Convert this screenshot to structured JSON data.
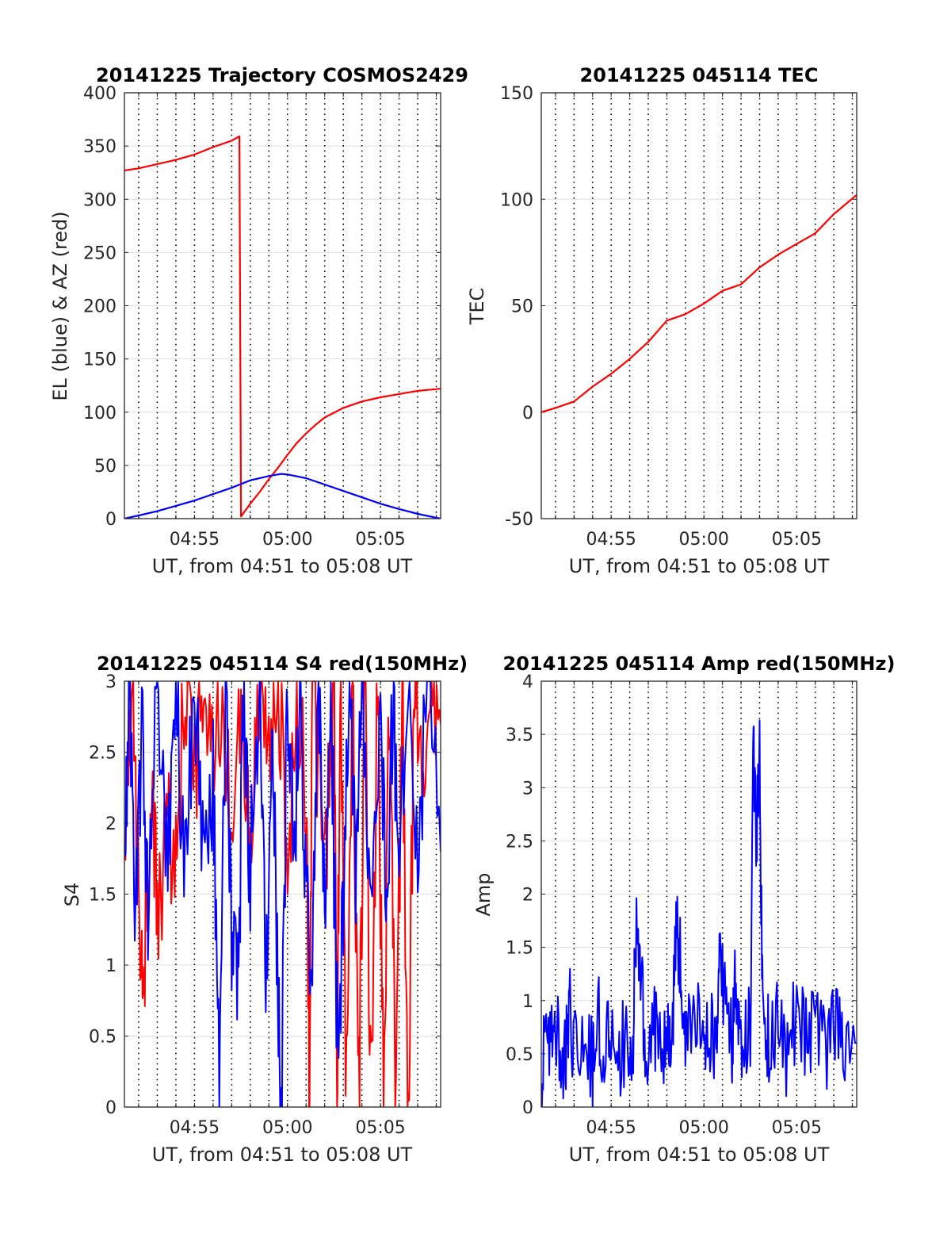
{
  "chart_data": [
    {
      "type": "line",
      "title": "20141225 Trajectory COSMOS2429",
      "xlabel": "UT, from 04:51 to 05:08 UT",
      "ylabel": "EL (blue) & AZ (red)",
      "x_range": [
        "04:51:14",
        "05:08:14"
      ],
      "ylim": [
        0,
        400
      ],
      "yticks": [
        0,
        50,
        100,
        150,
        200,
        250,
        300,
        350,
        400
      ],
      "xticks": [
        "04:55",
        "05:00",
        "05:05"
      ],
      "grid": "dotted vertical every minute, solid horizontal",
      "series": [
        {
          "color": "#ff0000",
          "kind": "azimuth",
          "points": [
            [
              "04:51:14",
              327
            ],
            [
              "04:52:00",
              329
            ],
            [
              "04:53:00",
              333
            ],
            [
              "04:54:00",
              337
            ],
            [
              "04:55:00",
              342
            ],
            [
              "04:56:00",
              349
            ],
            [
              "04:57:00",
              355
            ],
            [
              "04:57:25",
              359
            ],
            [
              "04:57:30",
              2
            ],
            [
              "04:58:00",
              14
            ],
            [
              "04:58:30",
              25
            ],
            [
              "04:59:00",
              37
            ],
            [
              "04:59:30",
              48
            ],
            [
              "05:00:00",
              60
            ],
            [
              "05:00:30",
              71
            ],
            [
              "05:01:00",
              80
            ],
            [
              "05:01:30",
              88
            ],
            [
              "05:02:00",
              95
            ],
            [
              "05:03:00",
              104
            ],
            [
              "05:04:00",
              110
            ],
            [
              "05:05:00",
              114
            ],
            [
              "05:06:00",
              117
            ],
            [
              "05:07:00",
              120
            ],
            [
              "05:08:14",
              122
            ]
          ]
        },
        {
          "color": "#0000ff",
          "kind": "elevation",
          "points": [
            [
              "04:51:14",
              0
            ],
            [
              "04:52:00",
              3
            ],
            [
              "04:53:00",
              7
            ],
            [
              "04:54:00",
              12
            ],
            [
              "04:55:00",
              17
            ],
            [
              "04:56:00",
              23
            ],
            [
              "04:57:00",
              29
            ],
            [
              "04:58:00",
              36
            ],
            [
              "04:59:00",
              40
            ],
            [
              "04:59:40",
              42
            ],
            [
              "05:00:00",
              41.5
            ],
            [
              "05:01:00",
              38
            ],
            [
              "05:02:00",
              32
            ],
            [
              "05:03:00",
              26
            ],
            [
              "05:04:00",
              20
            ],
            [
              "05:05:00",
              14
            ],
            [
              "05:06:00",
              9
            ],
            [
              "05:07:00",
              4.5
            ],
            [
              "05:08:14",
              0
            ]
          ]
        }
      ]
    },
    {
      "type": "line",
      "title": "20141225 045114 TEC",
      "xlabel": "UT, from 04:51 to 05:08 UT",
      "ylabel": "TEC",
      "x_range": [
        "04:51:14",
        "05:08:14"
      ],
      "ylim": [
        -50,
        150
      ],
      "yticks": [
        -50,
        0,
        50,
        100,
        150
      ],
      "xticks": [
        "04:55",
        "05:00",
        "05:05"
      ],
      "series": [
        {
          "color": "#ff0000",
          "points": [
            [
              "04:51:14",
              0
            ],
            [
              "04:52:00",
              2
            ],
            [
              "04:53:00",
              5
            ],
            [
              "04:54:00",
              12
            ],
            [
              "04:55:00",
              18
            ],
            [
              "04:56:00",
              25
            ],
            [
              "04:57:00",
              33
            ],
            [
              "04:58:00",
              43
            ],
            [
              "04:59:00",
              46
            ],
            [
              "05:00:00",
              51
            ],
            [
              "05:01:00",
              57
            ],
            [
              "05:02:00",
              60
            ],
            [
              "05:03:00",
              68
            ],
            [
              "05:04:00",
              74
            ],
            [
              "05:05:00",
              79
            ],
            [
              "05:06:00",
              84
            ],
            [
              "05:07:00",
              93
            ],
            [
              "05:08:14",
              102
            ]
          ]
        }
      ]
    },
    {
      "type": "line",
      "title": "20141225 045114 S4 red(150MHz)",
      "xlabel": "UT, from 04:51 to 05:08 UT",
      "ylabel": "S4",
      "x_range": [
        "04:51:14",
        "05:08:14"
      ],
      "ylim": [
        0,
        3
      ],
      "yticks": [
        0,
        0.5,
        1,
        1.5,
        2,
        2.5,
        3
      ],
      "xticks": [
        "04:55",
        "05:00",
        "05:05"
      ],
      "series": [
        {
          "color": "#ff0000",
          "points": [
            [
              "04:51:14",
              1.9
            ],
            [
              "04:51:40",
              3
            ],
            [
              "04:52:00",
              1.5
            ],
            [
              "04:52:20",
              1.1
            ],
            [
              "04:52:40",
              2.5
            ],
            [
              "04:53:00",
              1.4
            ],
            [
              "04:53:30",
              1.9
            ],
            [
              "04:54:00",
              1.7
            ],
            [
              "04:54:30",
              3
            ],
            [
              "04:55:00",
              2.2
            ],
            [
              "04:55:30",
              3
            ],
            [
              "04:56:00",
              2.5
            ],
            [
              "04:56:30",
              3
            ],
            [
              "04:57:00",
              1.8
            ],
            [
              "04:57:30",
              2.8
            ],
            [
              "04:58:00",
              1.7
            ],
            [
              "04:58:30",
              3
            ],
            [
              "04:59:00",
              2.3
            ],
            [
              "04:59:30",
              3
            ],
            [
              "05:00:00",
              1.8
            ],
            [
              "05:00:30",
              3
            ],
            [
              "05:01:00",
              2.2
            ],
            [
              "05:01:10",
              0
            ],
            [
              "05:01:20",
              3
            ],
            [
              "05:02:00",
              1.6
            ],
            [
              "05:02:30",
              3
            ],
            [
              "05:02:40",
              0
            ],
            [
              "05:02:50",
              3
            ],
            [
              "05:03:10",
              0
            ],
            [
              "05:03:30",
              3
            ],
            [
              "05:03:50",
              0
            ],
            [
              "05:04:10",
              3
            ],
            [
              "05:04:30",
              0
            ],
            [
              "05:04:50",
              3
            ],
            [
              "05:05:10",
              0
            ],
            [
              "05:05:30",
              3
            ],
            [
              "05:05:50",
              0
            ],
            [
              "05:06:10",
              3
            ],
            [
              "05:06:30",
              0
            ],
            [
              "05:06:50",
              3
            ],
            [
              "05:07:10",
              2.4
            ],
            [
              "05:07:40",
              3
            ],
            [
              "05:08:14",
              2.7
            ]
          ]
        },
        {
          "color": "#0000ff",
          "points": [
            [
              "04:51:14",
              1.5
            ],
            [
              "04:51:30",
              3
            ],
            [
              "04:51:50",
              1.4
            ],
            [
              "04:52:10",
              2.6
            ],
            [
              "04:52:30",
              1.5
            ],
            [
              "04:53:00",
              2.8
            ],
            [
              "04:53:30",
              1.6
            ],
            [
              "04:54:00",
              3
            ],
            [
              "04:54:30",
              1.5
            ],
            [
              "04:55:00",
              3
            ],
            [
              "04:55:30",
              1.6
            ],
            [
              "04:56:00",
              2.4
            ],
            [
              "04:56:20",
              0
            ],
            [
              "04:56:40",
              3
            ],
            [
              "04:57:00",
              1.2
            ],
            [
              "04:57:20",
              0.8
            ],
            [
              "04:57:40",
              3
            ],
            [
              "04:58:00",
              1.6
            ],
            [
              "04:58:30",
              3
            ],
            [
              "04:58:50",
              0.7
            ],
            [
              "04:59:10",
              3
            ],
            [
              "04:59:25",
              1.2
            ],
            [
              "04:59:40",
              0
            ],
            [
              "05:00:00",
              3
            ],
            [
              "05:00:20",
              1.7
            ],
            [
              "05:00:40",
              3
            ],
            [
              "05:01:00",
              1.5
            ],
            [
              "05:01:20",
              1.1
            ],
            [
              "05:01:40",
              3
            ],
            [
              "05:02:00",
              1.5
            ],
            [
              "05:02:20",
              3
            ],
            [
              "05:02:40",
              0.5
            ],
            [
              "05:03:00",
              1.3
            ],
            [
              "05:03:20",
              3
            ],
            [
              "05:03:40",
              1.5
            ],
            [
              "05:04:00",
              3
            ],
            [
              "05:04:30",
              1.5
            ],
            [
              "05:05:00",
              3
            ],
            [
              "05:05:20",
              1.2
            ],
            [
              "05:05:40",
              3
            ],
            [
              "05:06:00",
              1.5
            ],
            [
              "05:06:30",
              3
            ],
            [
              "05:07:00",
              1.6
            ],
            [
              "05:07:30",
              3
            ],
            [
              "05:08:14",
              1.8
            ]
          ]
        }
      ]
    },
    {
      "type": "line",
      "title": "20141225 045114 Amp red(150MHz)",
      "xlabel": "UT, from 04:51 to 05:08 UT",
      "ylabel": "Amp",
      "x_range": [
        "04:51:14",
        "05:08:14"
      ],
      "ylim": [
        0,
        4
      ],
      "yticks": [
        0,
        0.5,
        1,
        1.5,
        2,
        2.5,
        3,
        3.5,
        4
      ],
      "xticks": [
        "04:55",
        "05:00",
        "05:05"
      ],
      "series": [
        {
          "color": "#0000ff",
          "points": [
            [
              "04:51:14",
              0.1
            ],
            [
              "04:51:30",
              0.8
            ],
            [
              "04:51:50",
              0.5
            ],
            [
              "04:52:10",
              0.7
            ],
            [
              "04:52:30",
              0.4
            ],
            [
              "04:52:45",
              1.05
            ],
            [
              "04:53:00",
              0.5
            ],
            [
              "04:53:30",
              0.75
            ],
            [
              "04:54:00",
              0.4
            ],
            [
              "04:54:20",
              0.8
            ],
            [
              "04:54:40",
              0.5
            ],
            [
              "04:55:00",
              0.8
            ],
            [
              "04:55:30",
              0.5
            ],
            [
              "04:56:00",
              0.75
            ],
            [
              "04:56:10",
              0.5
            ],
            [
              "04:56:20",
              1.65
            ],
            [
              "04:56:35",
              1.25
            ],
            [
              "04:56:50",
              0.6
            ],
            [
              "04:57:20",
              0.75
            ],
            [
              "04:57:40",
              0.5
            ],
            [
              "04:58:00",
              0.8
            ],
            [
              "04:58:15",
              0.6
            ],
            [
              "04:58:30",
              1.65
            ],
            [
              "04:58:45",
              1.3
            ],
            [
              "04:59:00",
              0.6
            ],
            [
              "04:59:30",
              0.8
            ],
            [
              "05:00:00",
              0.6
            ],
            [
              "05:00:20",
              0.75
            ],
            [
              "05:00:40",
              0.5
            ],
            [
              "05:00:50",
              1.45
            ],
            [
              "05:01:10",
              1.0
            ],
            [
              "05:01:30",
              0.6
            ],
            [
              "05:01:40",
              1.05
            ],
            [
              "05:01:55",
              0.8
            ],
            [
              "05:02:10",
              0.6
            ],
            [
              "05:02:30",
              0.8
            ],
            [
              "05:02:40",
              3.35
            ],
            [
              "05:02:50",
              2.6
            ],
            [
              "05:03:00",
              3.45
            ],
            [
              "05:03:10",
              0.8
            ],
            [
              "05:03:30",
              0.6
            ],
            [
              "05:04:00",
              0.8
            ],
            [
              "05:04:30",
              0.5
            ],
            [
              "05:05:00",
              0.9
            ],
            [
              "05:05:30",
              0.6
            ],
            [
              "05:06:00",
              0.85
            ],
            [
              "05:06:30",
              0.5
            ],
            [
              "05:07:00",
              0.8
            ],
            [
              "05:07:30",
              0.5
            ],
            [
              "05:08:14",
              0.6
            ]
          ]
        }
      ]
    }
  ]
}
